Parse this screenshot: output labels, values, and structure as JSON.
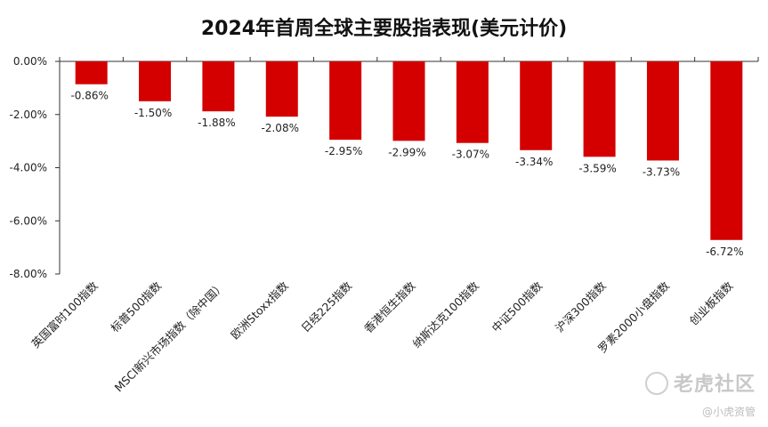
{
  "chart_data": {
    "type": "bar",
    "title": "2024年首周全球主要股指表现(美元计价)",
    "categories": [
      "英国富时100指数",
      "标普500指数",
      "MSCI新兴市场指数（除中国）",
      "欧洲Stoxx指数",
      "日经225指数",
      "香港恒生指数",
      "纳斯达克100指数",
      "中证500指数",
      "沪深300指数",
      "罗素2000小盘指数",
      "创业板指数"
    ],
    "values": [
      -0.86,
      -1.5,
      -1.88,
      -2.08,
      -2.95,
      -2.99,
      -3.07,
      -3.34,
      -3.59,
      -3.73,
      -6.72
    ],
    "data_labels": [
      "-0.86%",
      "-1.50%",
      "-1.88%",
      "-2.08%",
      "-2.95%",
      "-2.99%",
      "-3.07%",
      "-3.34%",
      "-3.59%",
      "-3.73%",
      "-6.72%"
    ],
    "yticks": [
      0,
      -2,
      -4,
      -6,
      -8
    ],
    "ytick_labels": [
      "0.00%",
      "-2.00%",
      "-4.00%",
      "-6.00%",
      "-8.00%"
    ],
    "ylim": [
      -8,
      0
    ],
    "bar_color": "#d40000",
    "xlabel": "",
    "ylabel": "",
    "grid": false,
    "legend": "none"
  },
  "watermark": {
    "main": "老虎社区",
    "sub": "@小虎资管",
    "icon": "tiger-logo-icon"
  }
}
